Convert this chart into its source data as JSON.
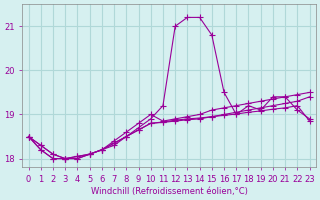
{
  "xlabel": "Windchill (Refroidissement éolien,°C)",
  "ylabel": "",
  "background_color": "#d6f0f0",
  "grid_color": "#b0d8d8",
  "line_color": "#990099",
  "hours": [
    0,
    1,
    2,
    3,
    4,
    5,
    6,
    7,
    8,
    9,
    10,
    11,
    12,
    13,
    14,
    15,
    16,
    17,
    18,
    19,
    20,
    21,
    22,
    23
  ],
  "temp": [
    18.5,
    18.3,
    18.1,
    18.0,
    18.0,
    18.1,
    18.2,
    18.3,
    18.5,
    18.7,
    18.9,
    19.2,
    21.0,
    21.2,
    21.2,
    20.8,
    19.5,
    19.0,
    19.2,
    19.1,
    19.4,
    19.4,
    19.1,
    18.9
  ],
  "line2": [
    18.5,
    18.3,
    18.1,
    18.0,
    18.0,
    18.1,
    18.2,
    18.4,
    18.6,
    18.8,
    19.0,
    18.85,
    18.9,
    18.95,
    19.0,
    19.1,
    19.15,
    19.2,
    19.25,
    19.3,
    19.35,
    19.4,
    19.45,
    19.5
  ],
  "line3": [
    18.5,
    18.2,
    18.0,
    18.0,
    18.05,
    18.1,
    18.2,
    18.35,
    18.5,
    18.65,
    18.8,
    18.82,
    18.85,
    18.88,
    18.9,
    18.95,
    19.0,
    19.05,
    19.1,
    19.15,
    19.2,
    19.25,
    19.3,
    19.4
  ],
  "line4": [
    18.5,
    18.2,
    18.0,
    18.0,
    18.05,
    18.1,
    18.2,
    18.35,
    18.5,
    18.65,
    18.8,
    18.83,
    18.87,
    18.9,
    18.92,
    18.95,
    18.98,
    19.01,
    19.05,
    19.08,
    19.12,
    19.15,
    19.2,
    18.85
  ],
  "ylim": [
    17.8,
    21.5
  ],
  "yticks": [
    18,
    19,
    20,
    21
  ],
  "xticks": [
    0,
    1,
    2,
    3,
    4,
    5,
    6,
    7,
    8,
    9,
    10,
    11,
    12,
    13,
    14,
    15,
    16,
    17,
    18,
    19,
    20,
    21,
    22,
    23
  ],
  "axis_label_fontsize": 6,
  "tick_fontsize": 6
}
